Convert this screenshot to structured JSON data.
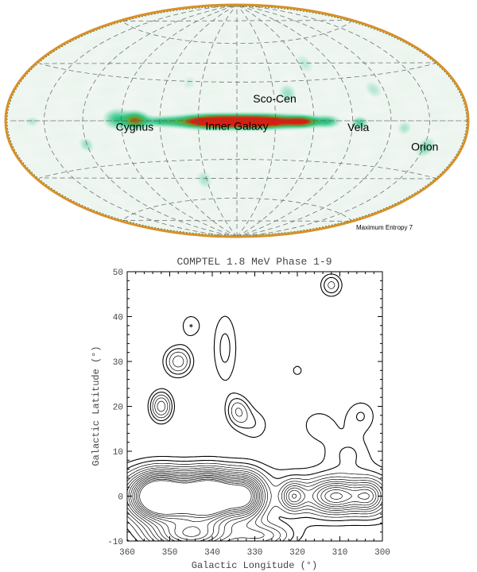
{
  "chart_data": [
    {
      "type": "heatmap",
      "projection": "aitoff-allsky",
      "grid": true,
      "colors": {
        "background": "#f3f7f4",
        "low": "#2ec48c",
        "mid": "#1a9c5e",
        "high": "#d02010",
        "border": "#d89028"
      },
      "annotations": [
        {
          "text": "Sco-Cen",
          "lon": 330,
          "lat": 14
        },
        {
          "text": "Cygnus",
          "lon": 80,
          "lat": -7
        },
        {
          "text": "Inner Galaxy",
          "lon": 0,
          "lat": -7
        },
        {
          "text": "Vela",
          "lon": 265,
          "lat": -7
        },
        {
          "text": "Orion",
          "lon": 208,
          "lat": -17
        }
      ],
      "caption": "Maximum Entropy 7",
      "sources": [
        {
          "lon": 0,
          "lat": 0,
          "dlon": 28,
          "dlat": 3.2,
          "intensity": 1.0
        },
        {
          "lon": 20,
          "lat": 0,
          "dlon": 16,
          "dlat": 3.0,
          "intensity": 0.9
        },
        {
          "lon": 340,
          "lat": 0,
          "dlon": 16,
          "dlat": 3.0,
          "intensity": 0.9
        },
        {
          "lon": 310,
          "lat": 0,
          "dlon": 8,
          "dlat": 2.6,
          "intensity": 0.85
        },
        {
          "lon": 80,
          "lat": 1,
          "dlon": 6,
          "dlat": 4,
          "intensity": 0.8
        },
        {
          "lon": 95,
          "lat": 2,
          "dlon": 6,
          "dlat": 5,
          "intensity": 0.4
        },
        {
          "lon": 60,
          "lat": 0,
          "dlon": 10,
          "dlat": 2.5,
          "intensity": 0.35
        },
        {
          "lon": 290,
          "lat": 0,
          "dlon": 6,
          "dlat": 3,
          "intensity": 0.4
        },
        {
          "lon": 265,
          "lat": -1,
          "dlon": 4,
          "dlat": 3,
          "intensity": 0.4
        },
        {
          "lon": 210,
          "lat": -20,
          "dlon": 5,
          "dlat": 5,
          "intensity": 0.3
        },
        {
          "lon": 120,
          "lat": -18,
          "dlon": 4,
          "dlat": 4,
          "intensity": 0.25
        },
        {
          "lon": 30,
          "lat": -45,
          "dlon": 5,
          "dlat": 5,
          "intensity": 0.22
        },
        {
          "lon": 320,
          "lat": 22,
          "dlon": 5,
          "dlat": 5,
          "intensity": 0.25
        },
        {
          "lon": 300,
          "lat": 45,
          "dlon": 6,
          "dlat": 6,
          "intensity": 0.18
        },
        {
          "lon": 250,
          "lat": 25,
          "dlon": 5,
          "dlat": 5,
          "intensity": 0.2
        },
        {
          "lon": 230,
          "lat": -5,
          "dlon": 4,
          "dlat": 4,
          "intensity": 0.22
        },
        {
          "lon": 160,
          "lat": 0,
          "dlon": 4,
          "dlat": 3,
          "intensity": 0.2
        },
        {
          "lon": 40,
          "lat": 30,
          "dlon": 5,
          "dlat": 5,
          "intensity": 0.15
        }
      ]
    },
    {
      "type": "contour",
      "title": "COMPTEL 1.8 MeV Phase 1-9",
      "xlabel": "Galactic Longitude (°)",
      "ylabel": "Galactic Latitude (°)",
      "xlim": [
        360,
        300
      ],
      "ylim": [
        -10,
        50
      ],
      "xticks": [
        360,
        350,
        340,
        330,
        320,
        310,
        300
      ],
      "yticks": [
        -10,
        0,
        10,
        20,
        30,
        40,
        50
      ],
      "sources": [
        {
          "l": 353,
          "b": 0,
          "sl": 4.5,
          "sb": 3.6,
          "amp": 5.2
        },
        {
          "l": 340,
          "b": 0,
          "sl": 4.5,
          "sb": 3.6,
          "amp": 5.0
        },
        {
          "l": 332,
          "b": 0,
          "sl": 3.0,
          "sb": 3.4,
          "amp": 3.2
        },
        {
          "l": 346,
          "b": -1,
          "sl": 5.0,
          "sb": 4.0,
          "amp": 1.8
        },
        {
          "l": 321,
          "b": 0,
          "sl": 2.0,
          "sb": 2.2,
          "amp": 1.9
        },
        {
          "l": 311,
          "b": 0,
          "sl": 4.5,
          "sb": 2.6,
          "amp": 2.8
        },
        {
          "l": 303,
          "b": 0,
          "sl": 2.5,
          "sb": 2.6,
          "amp": 1.8
        },
        {
          "l": 345,
          "b": -9,
          "sl": 7.0,
          "sb": 2.5,
          "amp": 3.2
        },
        {
          "l": 328,
          "b": -9,
          "sl": 5.0,
          "sb": 2.0,
          "amp": 1.6
        },
        {
          "l": 352,
          "b": 20,
          "sl": 2.0,
          "sb": 2.5,
          "amp": 2.0
        },
        {
          "l": 348,
          "b": 30,
          "sl": 2.5,
          "sb": 2.5,
          "amp": 1.7
        },
        {
          "l": 345,
          "b": 38,
          "sl": 2.0,
          "sb": 2.2,
          "amp": 0.9
        },
        {
          "l": 337,
          "b": 33,
          "sl": 2.5,
          "sb": 7.0,
          "amp": 1.0
        },
        {
          "l": 334,
          "b": 19,
          "sl": 2.0,
          "sb": 2.5,
          "amp": 1.3
        },
        {
          "l": 330,
          "b": 16,
          "sl": 3.0,
          "sb": 3.0,
          "amp": 0.8
        },
        {
          "l": 312,
          "b": 47,
          "sl": 2.0,
          "sb": 2.0,
          "amp": 1.3
        },
        {
          "l": 320,
          "b": 28,
          "sl": 1.2,
          "sb": 1.2,
          "amp": 0.8
        },
        {
          "l": 305,
          "b": 18,
          "sl": 3.0,
          "sb": 3.0,
          "amp": 0.9
        },
        {
          "l": 315,
          "b": 16,
          "sl": 3.5,
          "sb": 3.0,
          "amp": 0.8
        },
        {
          "l": 308,
          "b": 10,
          "sl": 4.0,
          "sb": 3.0,
          "amp": 0.7
        }
      ],
      "levels": [
        0.6,
        0.9,
        1.2,
        1.5,
        1.8,
        2.1,
        2.4,
        2.7,
        3.0,
        3.3,
        3.6,
        3.9,
        4.2,
        4.5
      ]
    }
  ]
}
